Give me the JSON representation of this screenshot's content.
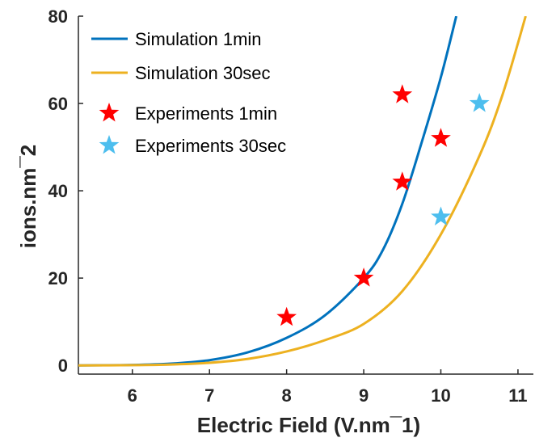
{
  "chart_data": {
    "type": "line",
    "title": "",
    "xlabel": "Electric Field (V.nm¯1)",
    "ylabel": "ions.nm¯2",
    "xlim": [
      5.3,
      11.2
    ],
    "ylim": [
      -2,
      80
    ],
    "xticks": [
      6,
      7,
      8,
      9,
      10,
      11
    ],
    "yticks": [
      0,
      20,
      40,
      60,
      80
    ],
    "grid": false,
    "legend_position": "top-left",
    "series": [
      {
        "name": "Simulation 1min",
        "kind": "line",
        "color": "#0072BD",
        "x": [
          5.3,
          6.0,
          6.5,
          7.0,
          7.5,
          8.0,
          8.5,
          9.0,
          9.25,
          9.5,
          9.75,
          10.0,
          10.2
        ],
        "y": [
          0,
          0.1,
          0.4,
          1.2,
          3.0,
          6.3,
          11.5,
          20.0,
          26.5,
          37.0,
          51.0,
          66.0,
          80.0
        ]
      },
      {
        "name": "Simulation 30sec",
        "kind": "line",
        "color": "#EDB120",
        "x": [
          5.3,
          6.0,
          6.5,
          7.0,
          7.5,
          8.0,
          8.5,
          9.0,
          9.5,
          10.0,
          10.5,
          10.8,
          11.1
        ],
        "y": [
          0,
          0.05,
          0.2,
          0.6,
          1.5,
          3.2,
          5.8,
          9.5,
          17.0,
          30.0,
          48.0,
          62.0,
          80.0
        ]
      },
      {
        "name": "Experiments 1min",
        "kind": "marker",
        "marker": "star",
        "color": "#FF0000",
        "x": [
          8.0,
          9.0,
          9.5,
          9.5,
          10.0
        ],
        "y": [
          11,
          20,
          42,
          62,
          52
        ]
      },
      {
        "name": "Experiments 30sec",
        "kind": "marker",
        "marker": "star",
        "color": "#4DBEEE",
        "x": [
          10.0,
          10.5
        ],
        "y": [
          34,
          60
        ]
      }
    ]
  }
}
